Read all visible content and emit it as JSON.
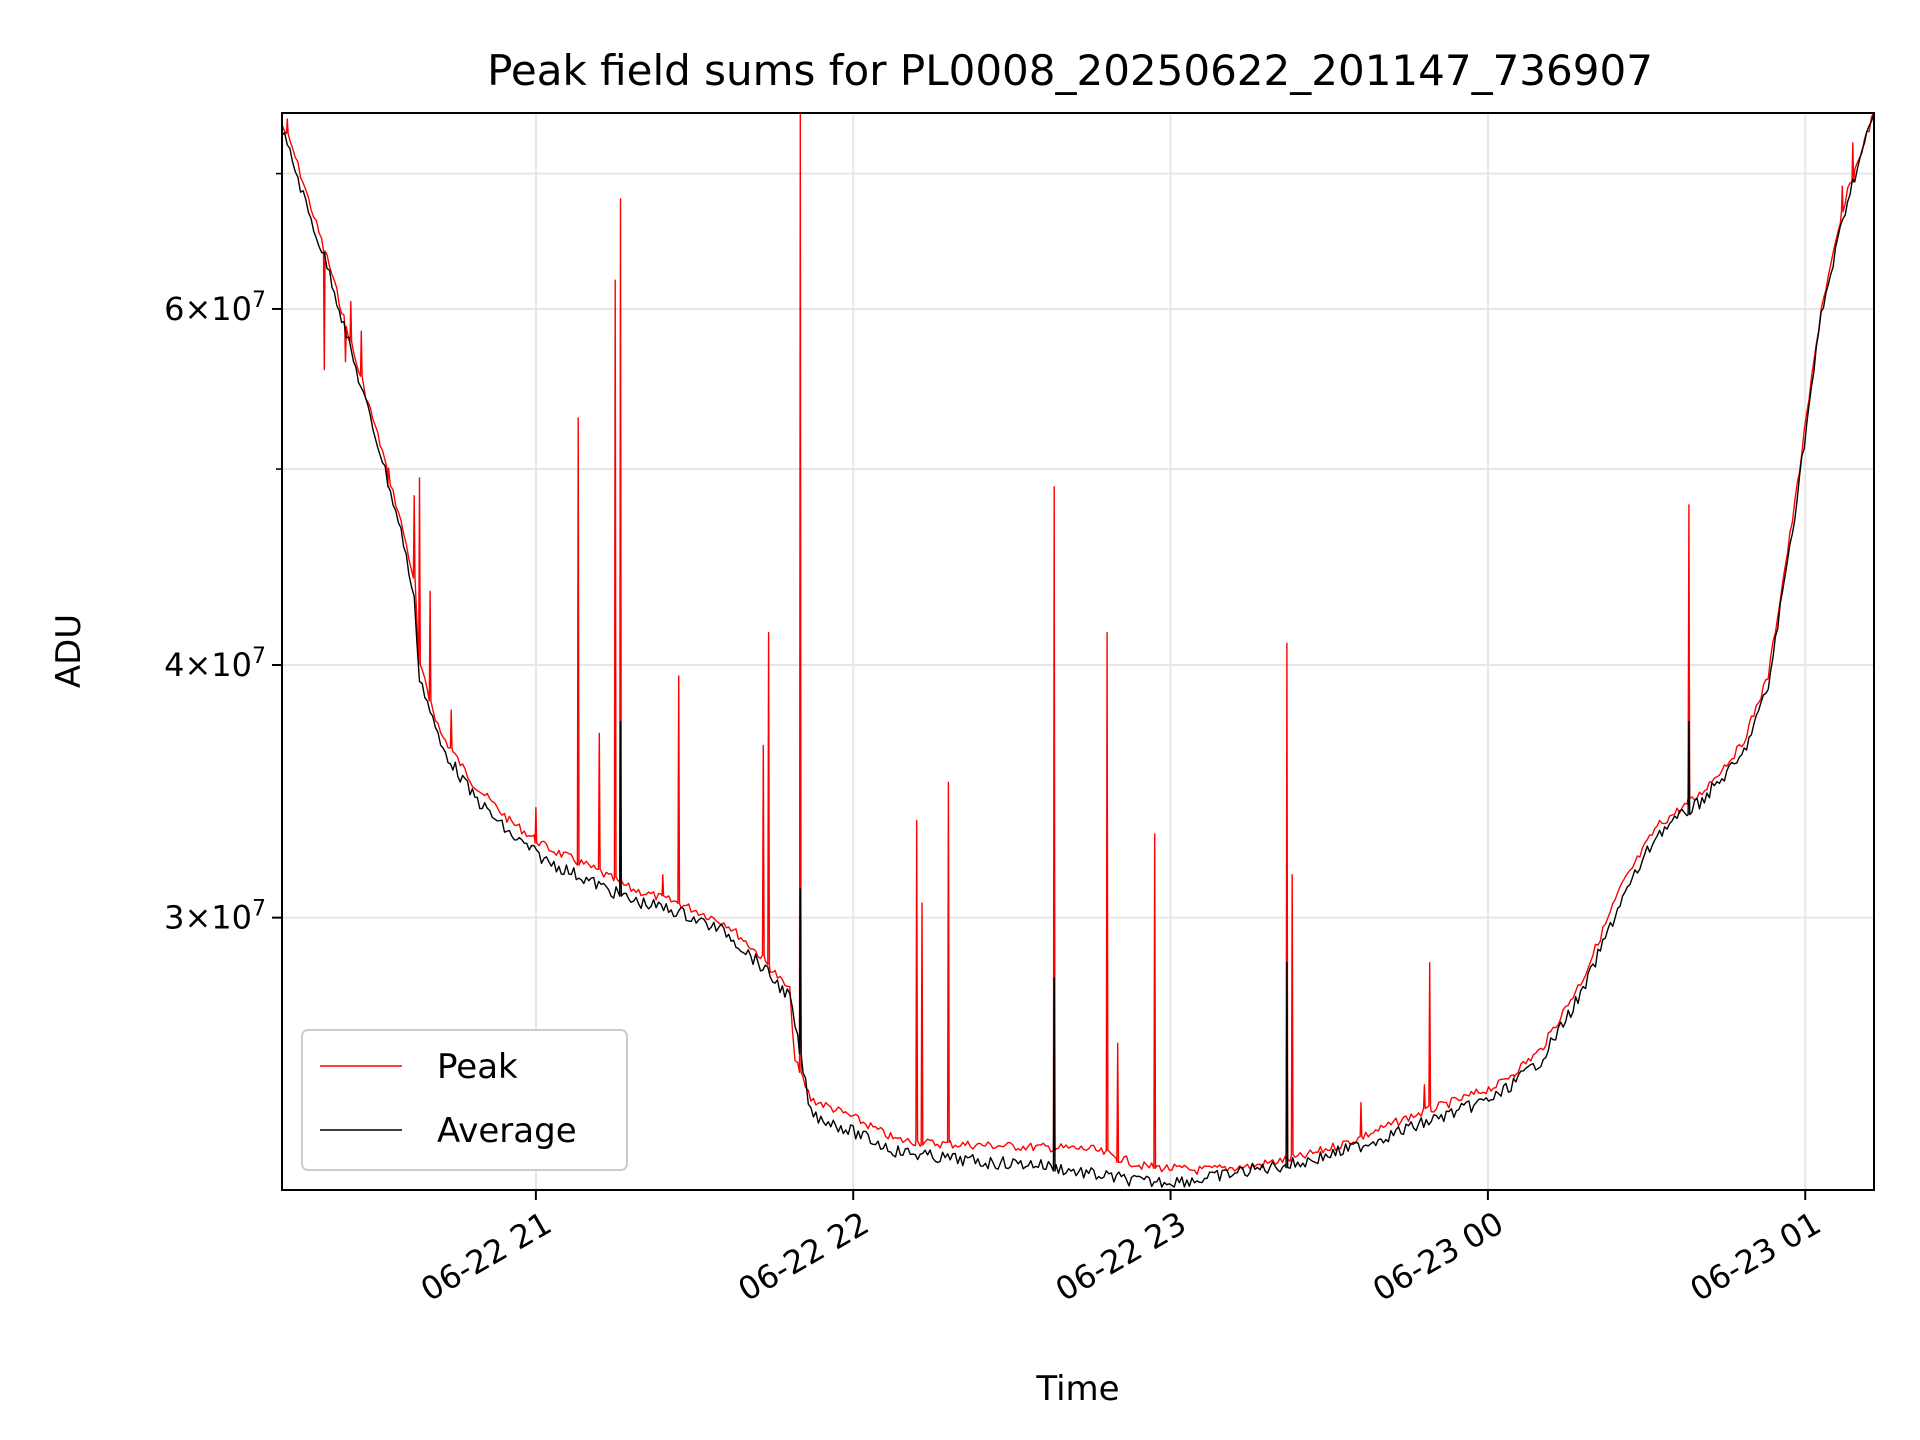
{
  "chart_data": {
    "type": "line",
    "title": "Peak field sums for PL0008_20250622_201147_736907",
    "xlabel": "Time",
    "ylabel": "ADU",
    "y_scale": "log",
    "ylim": [
      22000000,
      75000000
    ],
    "xlim": [
      "2025-06-22 20:12",
      "2025-06-23 01:13"
    ],
    "grid": true,
    "legend_position": "lower-left",
    "x_ticks": [
      {
        "value": "2025-06-22 21:00",
        "label": "06-22 21"
      },
      {
        "value": "2025-06-22 22:00",
        "label": "06-22 22"
      },
      {
        "value": "2025-06-22 23:00",
        "label": "06-22 23"
      },
      {
        "value": "2025-06-23 00:00",
        "label": "06-23 00"
      },
      {
        "value": "2025-06-23 01:00",
        "label": "06-23 01"
      }
    ],
    "y_ticks": [
      {
        "value": 30000000,
        "mantissa": "3",
        "exponent": "7"
      },
      {
        "value": 40000000,
        "mantissa": "4",
        "exponent": "7"
      },
      {
        "value": 60000000,
        "mantissa": "6",
        "exponent": "7"
      }
    ],
    "y_minor_ticks": [
      50000000,
      70000000
    ],
    "colors": {
      "peak": "#ff0000",
      "average": "#000000",
      "grid": "#e6e6e6"
    },
    "series": [
      {
        "name": "Peak",
        "color": "#ff0000",
        "points": [
          [
            "2025-06-22 20:12",
            74000000
          ],
          [
            "2025-06-22 20:14",
            72000000
          ],
          [
            "2025-06-22 20:17",
            68000000
          ],
          [
            "2025-06-22 20:21",
            63000000
          ],
          [
            "2025-06-22 20:26",
            56500000
          ],
          [
            "2025-06-22 20:31",
            51000000
          ],
          [
            "2025-06-22 20:35",
            46500000
          ],
          [
            "2025-06-22 20:37",
            44000000
          ],
          [
            "2025-06-22 20:38",
            40000000
          ],
          [
            "2025-06-22 20:42",
            37000000
          ],
          [
            "2025-06-22 20:48",
            35000000
          ],
          [
            "2025-06-22 20:55",
            33500000
          ],
          [
            "2025-06-22 21:02",
            32500000
          ],
          [
            "2025-06-22 21:10",
            31800000
          ],
          [
            "2025-06-22 21:18",
            31000000
          ],
          [
            "2025-06-22 21:27",
            30500000
          ],
          [
            "2025-06-22 21:36",
            29800000
          ],
          [
            "2025-06-22 21:42",
            28800000
          ],
          [
            "2025-06-22 21:48",
            27600000
          ],
          [
            "2025-06-22 21:49",
            25500000
          ],
          [
            "2025-06-22 21:52",
            24400000
          ],
          [
            "2025-06-22 22:00",
            23900000
          ],
          [
            "2025-06-22 22:08",
            23300000
          ],
          [
            "2025-06-22 22:15",
            23200000
          ],
          [
            "2025-06-22 22:25",
            23150000
          ],
          [
            "2025-06-22 22:35",
            23100000
          ],
          [
            "2025-06-22 22:45",
            23050000
          ],
          [
            "2025-06-22 22:55",
            22600000
          ],
          [
            "2025-06-22 23:05",
            22500000
          ],
          [
            "2025-06-22 23:15",
            22600000
          ],
          [
            "2025-06-22 23:25",
            22850000
          ],
          [
            "2025-06-22 23:35",
            23300000
          ],
          [
            "2025-06-22 23:45",
            23900000
          ],
          [
            "2025-06-22 23:55",
            24400000
          ],
          [
            "2025-06-23 00:02",
            24800000
          ],
          [
            "2025-06-23 00:10",
            25800000
          ],
          [
            "2025-06-23 00:18",
            28000000
          ],
          [
            "2025-06-23 00:25",
            31000000
          ],
          [
            "2025-06-23 00:32",
            33300000
          ],
          [
            "2025-06-23 00:40",
            34500000
          ],
          [
            "2025-06-23 00:48",
            36500000
          ],
          [
            "2025-06-23 00:53",
            39500000
          ],
          [
            "2025-06-23 00:58",
            48000000
          ],
          [
            "2025-06-23 01:03",
            60000000
          ],
          [
            "2025-06-23 01:08",
            68500000
          ],
          [
            "2025-06-23 01:13",
            75000000
          ]
        ]
      },
      {
        "name": "Average",
        "color": "#000000",
        "points": [
          [
            "2025-06-22 20:12",
            73500000
          ],
          [
            "2025-06-22 20:14",
            71000000
          ],
          [
            "2025-06-22 20:17",
            67000000
          ],
          [
            "2025-06-22 20:21",
            62500000
          ],
          [
            "2025-06-22 20:26",
            56000000
          ],
          [
            "2025-06-22 20:31",
            50500000
          ],
          [
            "2025-06-22 20:35",
            46000000
          ],
          [
            "2025-06-22 20:37",
            43000000
          ],
          [
            "2025-06-22 20:38",
            39500000
          ],
          [
            "2025-06-22 20:42",
            36500000
          ],
          [
            "2025-06-22 20:48",
            34500000
          ],
          [
            "2025-06-22 20:55",
            33000000
          ],
          [
            "2025-06-22 21:02",
            32000000
          ],
          [
            "2025-06-22 21:10",
            31300000
          ],
          [
            "2025-06-22 21:18",
            30600000
          ],
          [
            "2025-06-22 21:27",
            30200000
          ],
          [
            "2025-06-22 21:36",
            29500000
          ],
          [
            "2025-06-22 21:42",
            28500000
          ],
          [
            "2025-06-22 21:48",
            27400000
          ],
          [
            "2025-06-22 21:52",
            24000000
          ],
          [
            "2025-06-22 22:00",
            23500000
          ],
          [
            "2025-06-22 22:08",
            23000000
          ],
          [
            "2025-06-22 22:15",
            22850000
          ],
          [
            "2025-06-22 22:25",
            22700000
          ],
          [
            "2025-06-22 22:35",
            22650000
          ],
          [
            "2025-06-22 22:45",
            22400000
          ],
          [
            "2025-06-22 22:55",
            22200000
          ],
          [
            "2025-06-22 23:05",
            22250000
          ],
          [
            "2025-06-22 23:15",
            22500000
          ],
          [
            "2025-06-22 23:25",
            22700000
          ],
          [
            "2025-06-22 23:35",
            23100000
          ],
          [
            "2025-06-22 23:45",
            23600000
          ],
          [
            "2025-06-22 23:55",
            24100000
          ],
          [
            "2025-06-23 00:02",
            24500000
          ],
          [
            "2025-06-23 00:10",
            25500000
          ],
          [
            "2025-06-23 00:18",
            27600000
          ],
          [
            "2025-06-23 00:25",
            30500000
          ],
          [
            "2025-06-23 00:32",
            33000000
          ],
          [
            "2025-06-23 00:40",
            34200000
          ],
          [
            "2025-06-23 00:48",
            36000000
          ],
          [
            "2025-06-23 00:53",
            39000000
          ],
          [
            "2025-06-23 00:58",
            47500000
          ],
          [
            "2025-06-23 01:03",
            59500000
          ],
          [
            "2025-06-23 01:08",
            68000000
          ],
          [
            "2025-06-23 01:13",
            75000000
          ]
        ]
      }
    ],
    "spikes": [
      {
        "series": "Peak",
        "time": "2025-06-22 20:13",
        "value": 74500000
      },
      {
        "series": "Peak",
        "time": "2025-06-22 20:20",
        "value": 56000000
      },
      {
        "series": "Peak",
        "time": "2025-06-22 20:24",
        "value": 56500000
      },
      {
        "series": "Peak",
        "time": "2025-06-22 20:25",
        "value": 60500000
      },
      {
        "series": "Peak",
        "time": "2025-06-22 20:27",
        "value": 58500000
      },
      {
        "series": "Peak",
        "time": "2025-06-22 20:32",
        "value": 49000000
      },
      {
        "series": "Peak",
        "time": "2025-06-22 20:37",
        "value": 48500000
      },
      {
        "series": "Peak",
        "time": "2025-06-22 20:38",
        "value": 49500000
      },
      {
        "series": "Peak",
        "time": "2025-06-22 20:40",
        "value": 43500000
      },
      {
        "series": "Peak",
        "time": "2025-06-22 20:44",
        "value": 38000000
      },
      {
        "series": "Peak",
        "time": "2025-06-22 21:00",
        "value": 34000000
      },
      {
        "series": "Peak",
        "time": "2025-06-22 21:08",
        "value": 53000000
      },
      {
        "series": "Peak",
        "time": "2025-06-22 21:12",
        "value": 37000000
      },
      {
        "series": "Peak",
        "time": "2025-06-22 21:15",
        "value": 62000000
      },
      {
        "series": "Peak",
        "time": "2025-06-22 21:16",
        "value": 68000000
      },
      {
        "series": "Peak",
        "time": "2025-06-22 21:24",
        "value": 31500000
      },
      {
        "series": "Peak",
        "time": "2025-06-22 21:27",
        "value": 39500000
      },
      {
        "series": "Peak",
        "time": "2025-06-22 21:43",
        "value": 36500000
      },
      {
        "series": "Peak",
        "time": "2025-06-22 21:44",
        "value": 41500000
      },
      {
        "series": "Peak",
        "time": "2025-06-22 21:50",
        "value": 75000000
      },
      {
        "series": "Peak",
        "time": "2025-06-22 22:12",
        "value": 33500000
      },
      {
        "series": "Peak",
        "time": "2025-06-22 22:13",
        "value": 30500000
      },
      {
        "series": "Peak",
        "time": "2025-06-22 22:18",
        "value": 35000000
      },
      {
        "series": "Peak",
        "time": "2025-06-22 22:38",
        "value": 49000000
      },
      {
        "series": "Peak",
        "time": "2025-06-22 22:48",
        "value": 41500000
      },
      {
        "series": "Peak",
        "time": "2025-06-22 22:50",
        "value": 26000000
      },
      {
        "series": "Peak",
        "time": "2025-06-22 22:57",
        "value": 33000000
      },
      {
        "series": "Peak",
        "time": "2025-06-22 23:22",
        "value": 41000000
      },
      {
        "series": "Peak",
        "time": "2025-06-22 23:23",
        "value": 31500000
      },
      {
        "series": "Peak",
        "time": "2025-06-22 23:36",
        "value": 24300000
      },
      {
        "series": "Peak",
        "time": "2025-06-22 23:48",
        "value": 24800000
      },
      {
        "series": "Peak",
        "time": "2025-06-22 23:49",
        "value": 28500000
      },
      {
        "series": "Peak",
        "time": "2025-06-23 00:05",
        "value": 25000000
      },
      {
        "series": "Peak",
        "time": "2025-06-23 00:38",
        "value": 48000000
      },
      {
        "series": "Peak",
        "time": "2025-06-23 01:07",
        "value": 69000000
      },
      {
        "series": "Peak",
        "time": "2025-06-23 01:09",
        "value": 72500000
      },
      {
        "series": "Average",
        "time": "2025-06-22 21:16",
        "value": 37500000
      },
      {
        "series": "Average",
        "time": "2025-06-22 21:50",
        "value": 31000000
      },
      {
        "series": "Average",
        "time": "2025-06-22 22:38",
        "value": 28000000
      },
      {
        "series": "Average",
        "time": "2025-06-22 23:22",
        "value": 28500000
      },
      {
        "series": "Average",
        "time": "2025-06-23 00:38",
        "value": 37500000
      }
    ]
  }
}
